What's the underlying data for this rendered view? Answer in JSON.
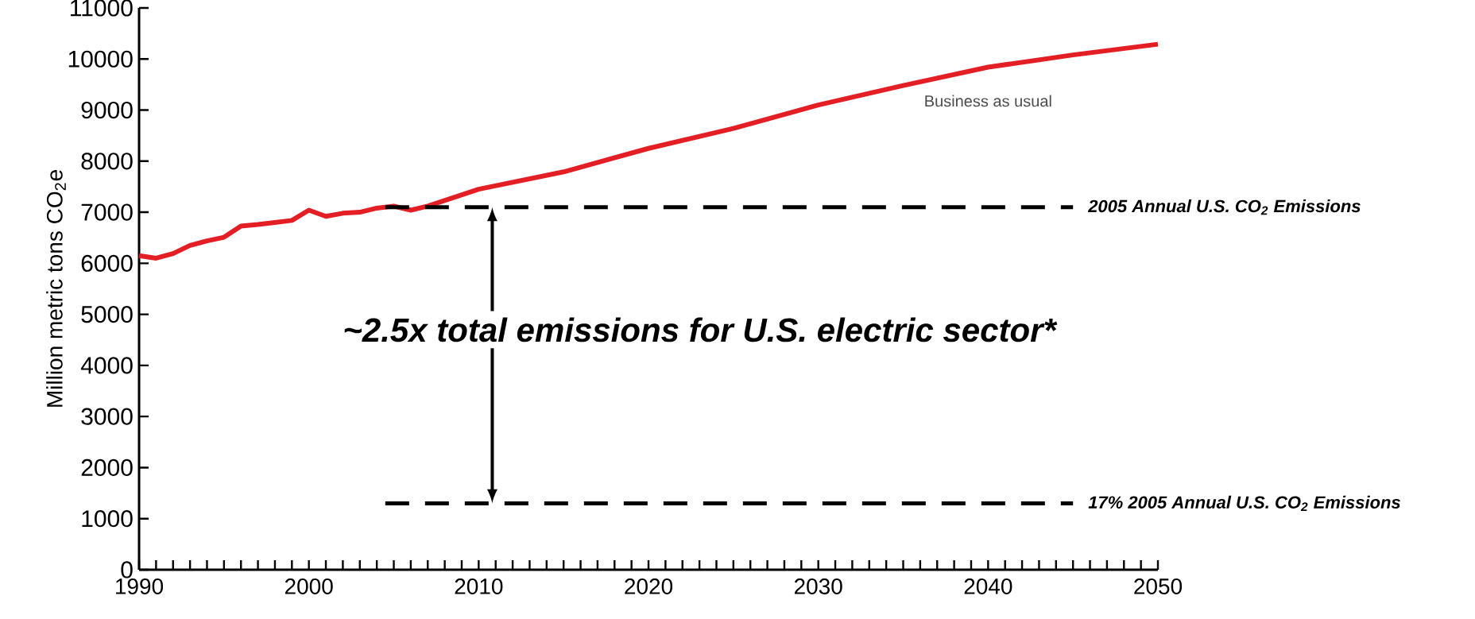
{
  "chart_data": {
    "type": "line",
    "ylabel": "Million metric tons CO$_{2}$e",
    "x": [
      1990,
      1991,
      1992,
      1993,
      1994,
      1995,
      1996,
      1997,
      1998,
      1999,
      2000,
      2001,
      2002,
      2003,
      2004,
      2005,
      2006,
      2007,
      2010,
      2015,
      2020,
      2025,
      2030,
      2035,
      2040,
      2045,
      2050
    ],
    "series": [
      {
        "name": "Business as usual",
        "color": "#e31e24",
        "values": [
          6150,
          6100,
          6190,
          6350,
          6440,
          6510,
          6730,
          6760,
          6800,
          6840,
          7040,
          6920,
          6980,
          7000,
          7080,
          7120,
          7040,
          7120,
          7450,
          7790,
          8250,
          8640,
          9100,
          9480,
          9840,
          10080,
          10290
        ]
      }
    ],
    "xlim": [
      1990,
      2050
    ],
    "xticks": [
      1990,
      {
        "value": 1991,
        "label": null
      },
      {
        "value": 1992,
        "label": null
      },
      {
        "value": 1993,
        "label": null
      },
      {
        "value": 1994,
        "label": null
      },
      {
        "value": 1995,
        "label": null
      },
      {
        "value": 1996,
        "label": null
      },
      {
        "value": 1997,
        "label": null
      },
      {
        "value": 1998,
        "label": null
      },
      {
        "value": 1999,
        "label": null
      },
      2000,
      {
        "value": 2001,
        "label": null
      },
      {
        "value": 2002,
        "label": null
      },
      {
        "value": 2003,
        "label": null
      },
      {
        "value": 2004,
        "label": null
      },
      {
        "value": 2005,
        "label": null
      },
      {
        "value": 2006,
        "label": null
      },
      {
        "value": 2007,
        "label": null
      },
      {
        "value": 2008,
        "label": null
      },
      {
        "value": 2009,
        "label": null
      },
      2010,
      {
        "value": 2011,
        "label": null
      },
      {
        "value": 2012,
        "label": null
      },
      {
        "value": 2013,
        "label": null
      },
      {
        "value": 2014,
        "label": null
      },
      {
        "value": 2015,
        "label": null
      },
      {
        "value": 2016,
        "label": null
      },
      {
        "value": 2017,
        "label": null
      },
      {
        "value": 2018,
        "label": null
      },
      {
        "value": 2019,
        "label": null
      },
      2020,
      {
        "value": 2021,
        "label": null
      },
      {
        "value": 2022,
        "label": null
      },
      {
        "value": 2023,
        "label": null
      },
      {
        "value": 2024,
        "label": null
      },
      {
        "value": 2025,
        "label": null
      },
      {
        "value": 2026,
        "label": null
      },
      {
        "value": 2027,
        "label": null
      },
      {
        "value": 2028,
        "label": null
      },
      {
        "value": 2029,
        "label": null
      },
      2030,
      {
        "value": 2031,
        "label": null
      },
      {
        "value": 2032,
        "label": null
      },
      {
        "value": 2033,
        "label": null
      },
      {
        "value": 2034,
        "label": null
      },
      {
        "value": 2035,
        "label": null
      },
      {
        "value": 2036,
        "label": null
      },
      {
        "value": 2037,
        "label": null
      },
      {
        "value": 2038,
        "label": null
      },
      {
        "value": 2039,
        "label": null
      },
      2040,
      {
        "value": 2041,
        "label": null
      },
      {
        "value": 2042,
        "label": null
      },
      {
        "value": 2043,
        "label": null
      },
      {
        "value": 2044,
        "label": null
      },
      {
        "value": 2045,
        "label": null
      },
      {
        "value": 2046,
        "label": null
      },
      {
        "value": 2047,
        "label": null
      },
      {
        "value": 2048,
        "label": null
      },
      {
        "value": 2049,
        "label": null
      },
      2050
    ],
    "ylim": [
      0,
      11000
    ],
    "yticks": [
      0,
      1000,
      2000,
      3000,
      4000,
      5000,
      6000,
      7000,
      8000,
      9000,
      10000,
      11000
    ],
    "ref_lines": [
      {
        "axis": "y",
        "value": 7100,
        "label": "2005 Annual U.S. CO$_{2}$ Emissions",
        "color": "#000000",
        "line_style": "dashed"
      },
      {
        "axis": "y",
        "value": 1300,
        "label": "17% 2005 Annual U.S. CO$_{2}$ Emissions",
        "color": "#000000",
        "line_style": "dashed"
      }
    ],
    "annotations": [
      "~2.5x total emissions for U.S. electric sector*"
    ]
  }
}
